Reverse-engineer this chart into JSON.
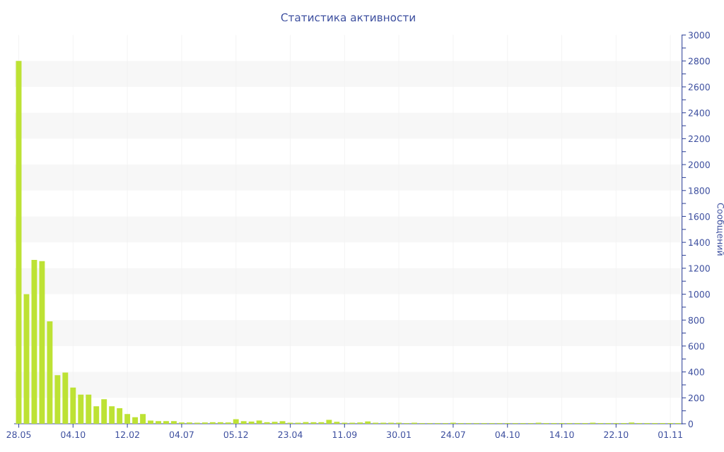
{
  "chart_data": {
    "type": "bar",
    "title": "Статистика активности",
    "ylabel": "Сообщений",
    "categories": [
      "28.05",
      null,
      null,
      null,
      null,
      null,
      null,
      "04.10",
      null,
      null,
      null,
      null,
      null,
      null,
      "12.02",
      null,
      null,
      null,
      null,
      null,
      null,
      "04.07",
      null,
      null,
      null,
      null,
      null,
      null,
      "05.12",
      null,
      null,
      null,
      null,
      null,
      null,
      "23.04",
      null,
      null,
      null,
      null,
      null,
      null,
      "11.09",
      null,
      null,
      null,
      null,
      null,
      null,
      "30.01",
      null,
      null,
      null,
      null,
      null,
      null,
      "24.07",
      null,
      null,
      null,
      null,
      null,
      null,
      "04.10",
      null,
      null,
      null,
      null,
      null,
      null,
      "14.10",
      null,
      null,
      null,
      null,
      null,
      null,
      "22.10",
      null,
      null,
      null,
      null,
      null,
      null,
      "01.11",
      null
    ],
    "values": [
      2800,
      1000,
      1265,
      1255,
      790,
      375,
      395,
      280,
      225,
      225,
      135,
      190,
      135,
      120,
      75,
      50,
      75,
      25,
      20,
      20,
      20,
      10,
      10,
      8,
      10,
      12,
      12,
      10,
      35,
      20,
      17,
      25,
      12,
      15,
      20,
      8,
      8,
      13,
      12,
      12,
      30,
      15,
      8,
      8,
      10,
      18,
      8,
      8,
      8,
      8,
      5,
      8,
      5,
      5,
      5,
      5,
      8,
      5,
      5,
      5,
      5,
      5,
      5,
      5,
      5,
      5,
      5,
      8,
      5,
      5,
      5,
      5,
      5,
      5,
      8,
      5,
      5,
      5,
      5,
      10,
      5,
      5,
      5,
      5,
      5,
      5
    ],
    "color": "#bde234",
    "ylim": [
      0,
      3000
    ],
    "yticks": [
      0,
      {
        "value": 100,
        "label": null
      },
      200,
      {
        "value": 300,
        "label": null
      },
      400,
      {
        "value": 500,
        "label": null
      },
      600,
      {
        "value": 700,
        "label": null
      },
      800,
      {
        "value": 900,
        "label": null
      },
      1000,
      {
        "value": 1100,
        "label": null
      },
      1200,
      {
        "value": 1300,
        "label": null
      },
      1400,
      {
        "value": 1500,
        "label": null
      },
      1600,
      {
        "value": 1700,
        "label": null
      },
      1800,
      {
        "value": 1900,
        "label": null
      },
      2000,
      {
        "value": 2100,
        "label": null
      },
      2200,
      {
        "value": 2300,
        "label": null
      },
      2400,
      {
        "value": 2500,
        "label": null
      },
      2600,
      {
        "value": 2700,
        "label": null
      },
      2800,
      {
        "value": 2900,
        "label": null
      },
      3000
    ],
    "grid": true
  }
}
